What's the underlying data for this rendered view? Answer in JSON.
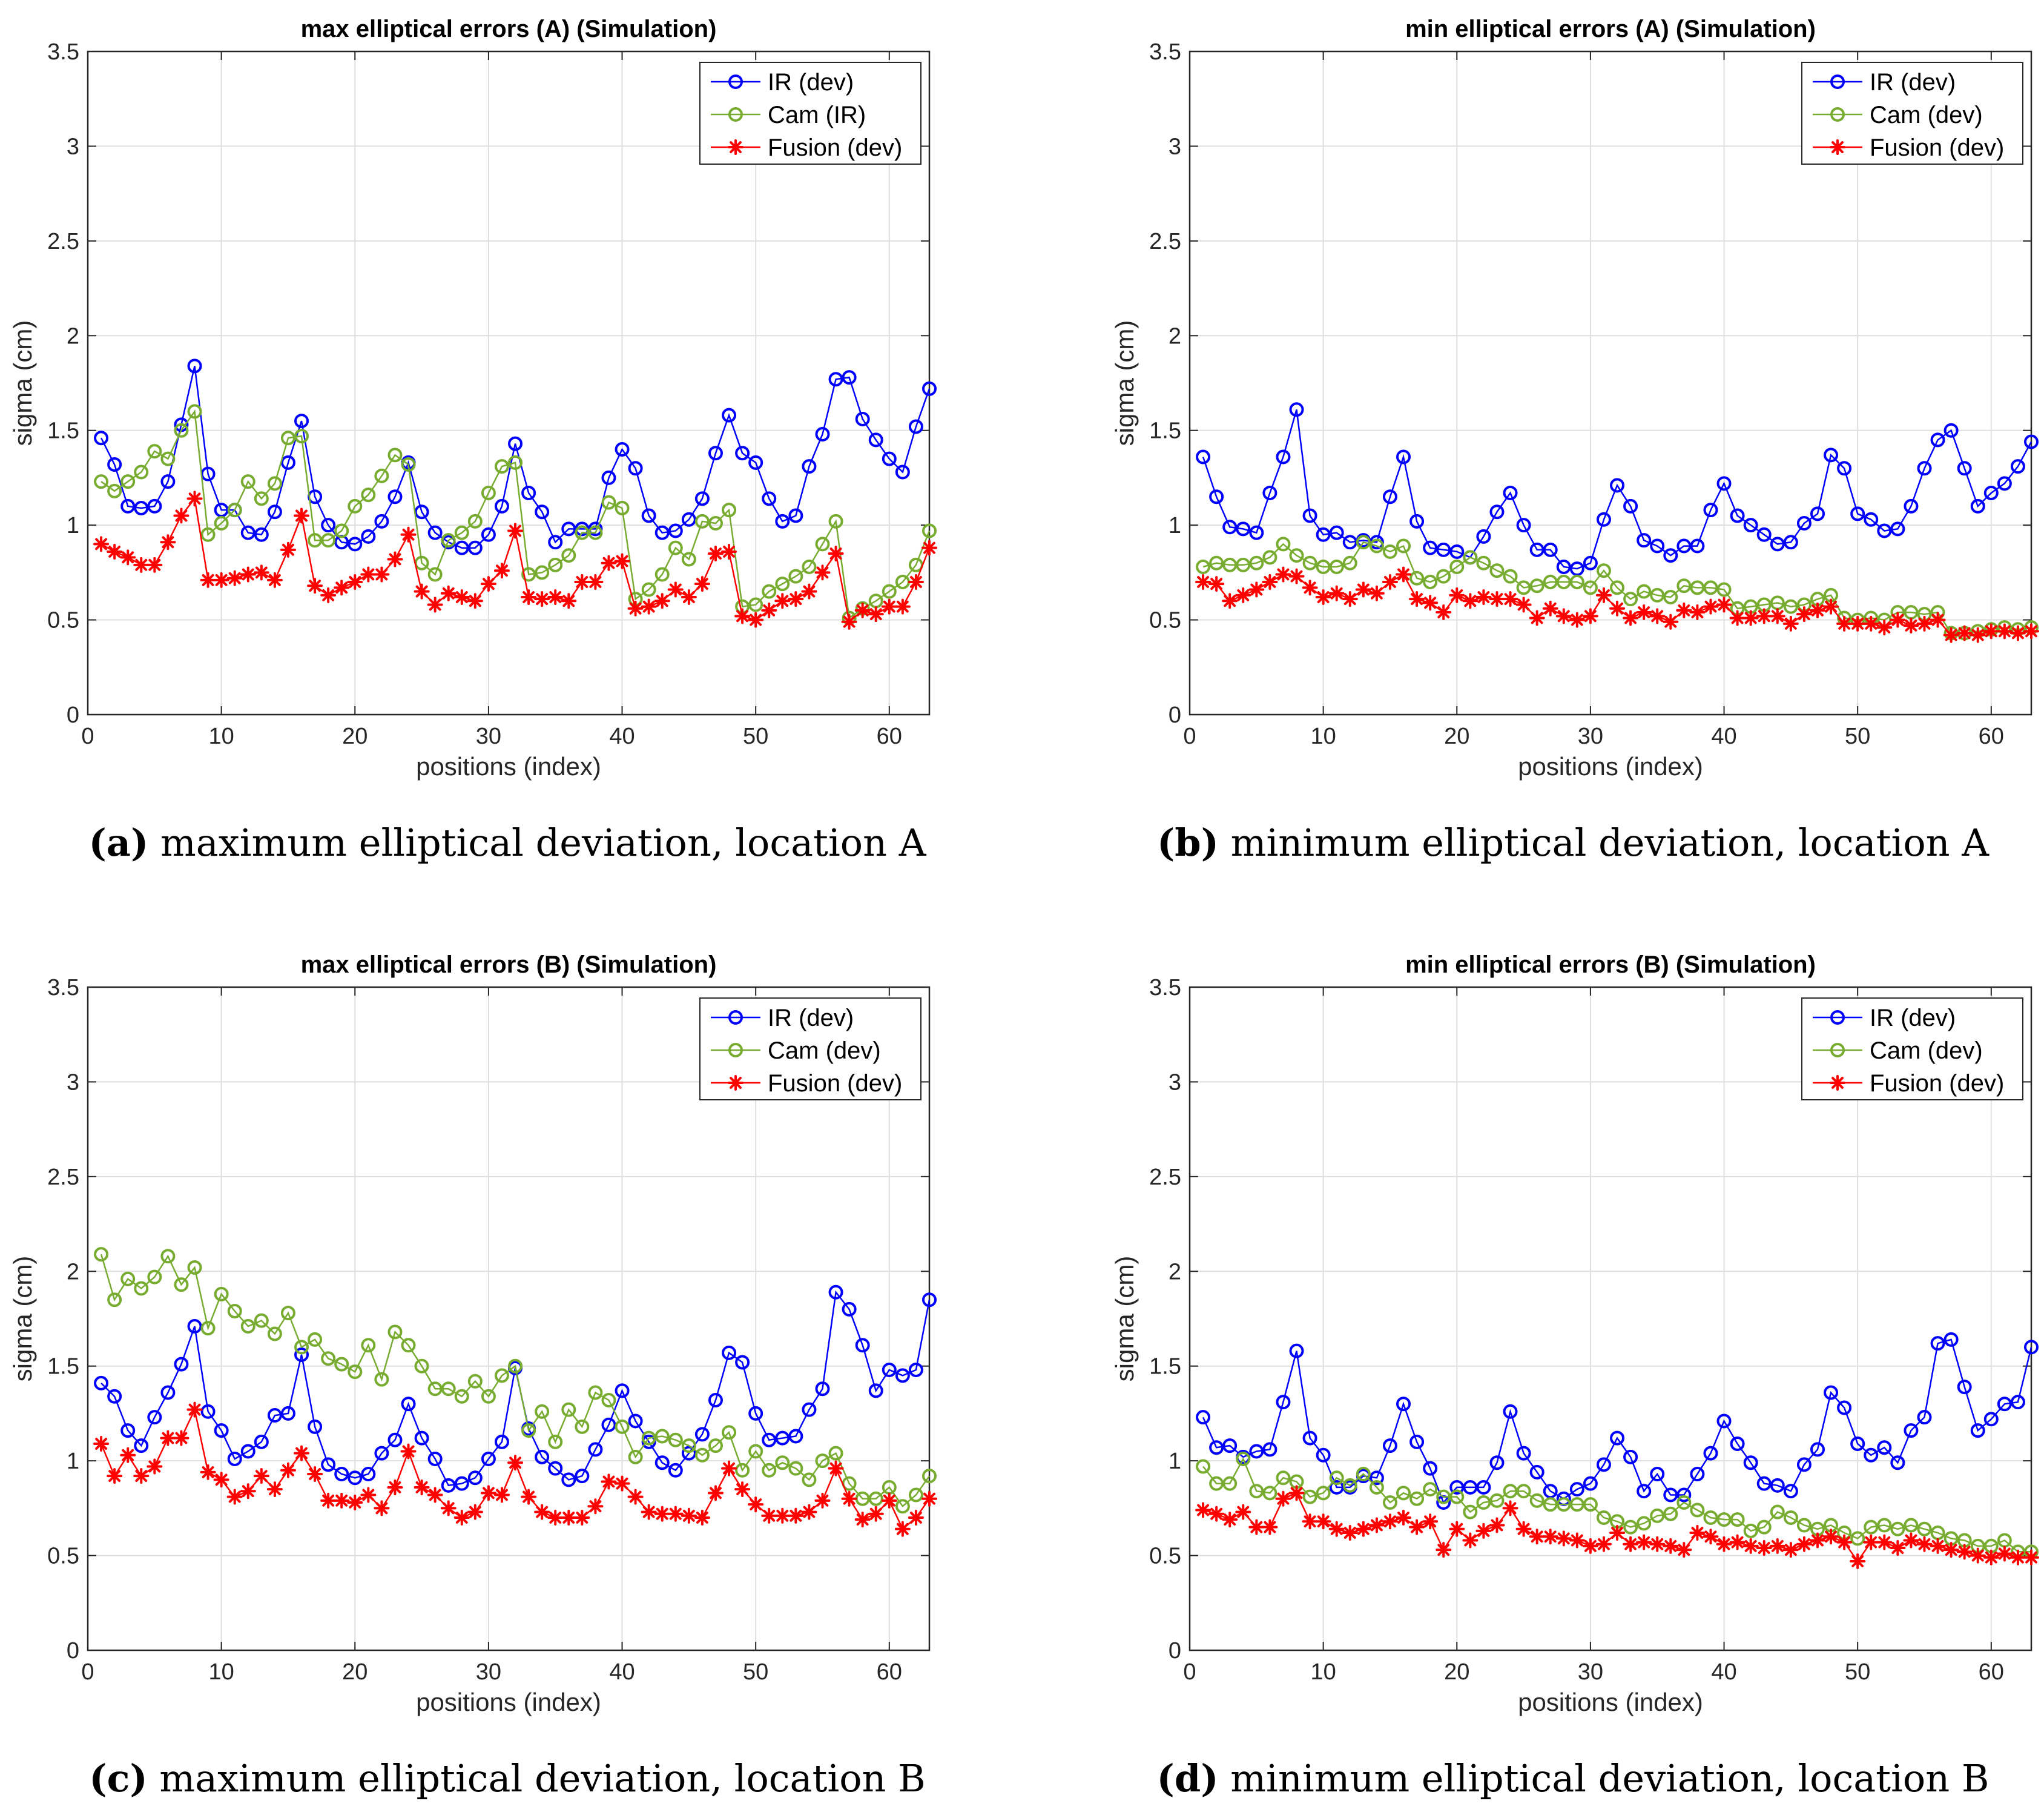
{
  "figure": {
    "colors": {
      "ir": "#0000ff",
      "cam": "#77ac30",
      "fusion": "#ff0000",
      "grid": "#dfdfdf",
      "axis": "#262626"
    }
  },
  "chart_data": [
    {
      "id": "a",
      "type": "line",
      "title": "max elliptical errors (A) (Simulation)",
      "xlabel": "positions (index)",
      "ylabel": "sigma (cm)",
      "xlim": [
        0,
        63
      ],
      "ylim": [
        0,
        3.5
      ],
      "xticks": [
        "0",
        "10",
        "20",
        "30",
        "40",
        "50",
        "60"
      ],
      "yticks": [
        "0",
        "0.5",
        "1",
        "1.5",
        "2",
        "2.5",
        "3",
        "3.5"
      ],
      "grid": true,
      "legend_position": "top-right",
      "caption_letter": "(a)",
      "caption_text": " maximum elliptical deviation, location A",
      "series": [
        {
          "name": "IR (dev)",
          "marker": "circle",
          "color": "#0000ff",
          "values": [
            1.46,
            1.32,
            1.1,
            1.09,
            1.1,
            1.23,
            1.53,
            1.84,
            1.27,
            1.08,
            1.08,
            0.96,
            0.95,
            1.07,
            1.33,
            1.55,
            1.15,
            1.0,
            0.91,
            0.9,
            0.94,
            1.02,
            1.15,
            1.33,
            1.07,
            0.96,
            0.91,
            0.88,
            0.88,
            0.95,
            1.1,
            1.43,
            1.17,
            1.07,
            0.91,
            0.98,
            0.98,
            0.98,
            1.25,
            1.4,
            1.3,
            1.05,
            0.96,
            0.97,
            1.03,
            1.14,
            1.38,
            1.58,
            1.38,
            1.33,
            1.14,
            1.02,
            1.05,
            1.31,
            1.48,
            1.77,
            1.78,
            1.56,
            1.45,
            1.35,
            1.28,
            1.52,
            1.72
          ]
        },
        {
          "name": "Cam (IR)",
          "marker": "circle",
          "color": "#77ac30",
          "values": [
            1.23,
            1.18,
            1.23,
            1.28,
            1.39,
            1.35,
            1.5,
            1.6,
            0.95,
            1.01,
            1.08,
            1.23,
            1.14,
            1.22,
            1.46,
            1.47,
            0.92,
            0.92,
            0.97,
            1.1,
            1.16,
            1.26,
            1.37,
            1.32,
            0.8,
            0.74,
            0.92,
            0.96,
            1.02,
            1.17,
            1.31,
            1.33,
            0.74,
            0.75,
            0.79,
            0.84,
            0.96,
            0.96,
            1.12,
            1.09,
            0.61,
            0.66,
            0.74,
            0.88,
            0.82,
            1.02,
            1.01,
            1.08,
            0.57,
            0.58,
            0.65,
            0.69,
            0.73,
            0.78,
            0.9,
            1.02,
            0.51,
            0.56,
            0.6,
            0.65,
            0.7,
            0.79,
            0.97
          ]
        },
        {
          "name": "Fusion (dev)",
          "marker": "star",
          "color": "#ff0000",
          "values": [
            0.9,
            0.86,
            0.83,
            0.79,
            0.79,
            0.91,
            1.05,
            1.14,
            0.71,
            0.71,
            0.72,
            0.74,
            0.75,
            0.71,
            0.87,
            1.05,
            0.68,
            0.63,
            0.67,
            0.7,
            0.74,
            0.74,
            0.82,
            0.95,
            0.65,
            0.58,
            0.64,
            0.62,
            0.6,
            0.69,
            0.76,
            0.97,
            0.62,
            0.61,
            0.62,
            0.6,
            0.7,
            0.7,
            0.8,
            0.81,
            0.56,
            0.57,
            0.6,
            0.66,
            0.62,
            0.69,
            0.85,
            0.86,
            0.52,
            0.5,
            0.55,
            0.6,
            0.61,
            0.65,
            0.75,
            0.85,
            0.49,
            0.55,
            0.53,
            0.57,
            0.57,
            0.7,
            0.88
          ]
        }
      ]
    },
    {
      "id": "b",
      "type": "line",
      "title": "min elliptical errors (A) (Simulation)",
      "xlabel": "positions (index)",
      "ylabel": "sigma (cm)",
      "xlim": [
        0,
        63
      ],
      "ylim": [
        0,
        3.5
      ],
      "xticks": [
        "0",
        "10",
        "20",
        "30",
        "40",
        "50",
        "60"
      ],
      "yticks": [
        "0",
        "0.5",
        "1",
        "1.5",
        "2",
        "2.5",
        "3",
        "3.5"
      ],
      "grid": true,
      "legend_position": "top-right",
      "caption_letter": "(b)",
      "caption_text": " minimum elliptical deviation, location A",
      "series": [
        {
          "name": "IR (dev)",
          "marker": "circle",
          "color": "#0000ff",
          "values": [
            1.36,
            1.15,
            0.99,
            0.98,
            0.96,
            1.17,
            1.36,
            1.61,
            1.05,
            0.95,
            0.96,
            0.91,
            0.92,
            0.91,
            1.15,
            1.36,
            1.02,
            0.88,
            0.87,
            0.86,
            0.83,
            0.94,
            1.07,
            1.17,
            1.0,
            0.87,
            0.87,
            0.78,
            0.77,
            0.8,
            1.03,
            1.21,
            1.1,
            0.92,
            0.89,
            0.84,
            0.89,
            0.89,
            1.08,
            1.22,
            1.05,
            1.0,
            0.95,
            0.9,
            0.91,
            1.01,
            1.06,
            1.37,
            1.3,
            1.06,
            1.03,
            0.97,
            0.98,
            1.1,
            1.3,
            1.45,
            1.5,
            1.3,
            1.1,
            1.17,
            1.22,
            1.31,
            1.44
          ]
        },
        {
          "name": "Cam (dev)",
          "marker": "circle",
          "color": "#77ac30",
          "values": [
            0.78,
            0.8,
            0.79,
            0.79,
            0.8,
            0.83,
            0.9,
            0.84,
            0.8,
            0.78,
            0.78,
            0.8,
            0.91,
            0.89,
            0.86,
            0.89,
            0.72,
            0.7,
            0.73,
            0.78,
            0.83,
            0.8,
            0.76,
            0.73,
            0.67,
            0.68,
            0.7,
            0.7,
            0.7,
            0.67,
            0.76,
            0.67,
            0.61,
            0.65,
            0.63,
            0.62,
            0.68,
            0.67,
            0.67,
            0.66,
            0.56,
            0.57,
            0.58,
            0.59,
            0.57,
            0.58,
            0.61,
            0.63,
            0.51,
            0.5,
            0.51,
            0.5,
            0.54,
            0.54,
            0.53,
            0.54,
            0.43,
            0.43,
            0.44,
            0.45,
            0.46,
            0.45,
            0.46
          ]
        },
        {
          "name": "Fusion (dev)",
          "marker": "star",
          "color": "#ff0000",
          "values": [
            0.7,
            0.69,
            0.6,
            0.63,
            0.66,
            0.7,
            0.74,
            0.73,
            0.67,
            0.62,
            0.64,
            0.61,
            0.66,
            0.64,
            0.7,
            0.74,
            0.61,
            0.59,
            0.54,
            0.63,
            0.6,
            0.62,
            0.61,
            0.61,
            0.58,
            0.51,
            0.56,
            0.52,
            0.5,
            0.52,
            0.63,
            0.56,
            0.51,
            0.54,
            0.52,
            0.49,
            0.55,
            0.54,
            0.57,
            0.58,
            0.51,
            0.51,
            0.52,
            0.52,
            0.48,
            0.53,
            0.55,
            0.57,
            0.48,
            0.48,
            0.48,
            0.46,
            0.5,
            0.47,
            0.48,
            0.5,
            0.42,
            0.43,
            0.42,
            0.44,
            0.44,
            0.43,
            0.44
          ]
        }
      ]
    },
    {
      "id": "c",
      "type": "line",
      "title": "max elliptical errors (B) (Simulation)",
      "xlabel": "positions (index)",
      "ylabel": "sigma (cm)",
      "xlim": [
        0,
        63
      ],
      "ylim": [
        0,
        3.5
      ],
      "xticks": [
        "0",
        "10",
        "20",
        "30",
        "40",
        "50",
        "60"
      ],
      "yticks": [
        "0",
        "0.5",
        "1",
        "1.5",
        "2",
        "2.5",
        "3",
        "3.5"
      ],
      "grid": true,
      "legend_position": "top-right",
      "caption_letter": "(c)",
      "caption_text": " maximum elliptical deviation, location B",
      "series": [
        {
          "name": "IR (dev)",
          "marker": "circle",
          "color": "#0000ff",
          "values": [
            1.41,
            1.34,
            1.16,
            1.08,
            1.23,
            1.36,
            1.51,
            1.71,
            1.26,
            1.16,
            1.01,
            1.05,
            1.1,
            1.24,
            1.25,
            1.56,
            1.18,
            0.98,
            0.93,
            0.91,
            0.93,
            1.04,
            1.11,
            1.3,
            1.12,
            1.01,
            0.87,
            0.88,
            0.91,
            1.01,
            1.1,
            1.49,
            1.17,
            1.02,
            0.96,
            0.9,
            0.92,
            1.06,
            1.19,
            1.37,
            1.21,
            1.1,
            0.99,
            0.95,
            1.04,
            1.14,
            1.32,
            1.57,
            1.52,
            1.25,
            1.11,
            1.12,
            1.13,
            1.27,
            1.38,
            1.89,
            1.8,
            1.61,
            1.37,
            1.48,
            1.45,
            1.48,
            1.85
          ]
        },
        {
          "name": "Cam (dev)",
          "marker": "circle",
          "color": "#77ac30",
          "values": [
            2.09,
            1.85,
            1.96,
            1.91,
            1.97,
            2.08,
            1.93,
            2.02,
            1.7,
            1.88,
            1.79,
            1.71,
            1.74,
            1.67,
            1.78,
            1.6,
            1.64,
            1.54,
            1.51,
            1.47,
            1.61,
            1.43,
            1.68,
            1.61,
            1.5,
            1.38,
            1.38,
            1.34,
            1.42,
            1.34,
            1.45,
            1.5,
            1.16,
            1.26,
            1.1,
            1.27,
            1.18,
            1.36,
            1.32,
            1.18,
            1.02,
            1.12,
            1.13,
            1.11,
            1.08,
            1.03,
            1.08,
            1.15,
            0.95,
            1.05,
            0.95,
            0.99,
            0.96,
            0.9,
            1.0,
            1.04,
            0.88,
            0.8,
            0.8,
            0.86,
            0.76,
            0.82,
            0.92
          ]
        },
        {
          "name": "Fusion (dev)",
          "marker": "star",
          "color": "#ff0000",
          "values": [
            1.09,
            0.92,
            1.03,
            0.92,
            0.97,
            1.12,
            1.12,
            1.27,
            0.94,
            0.9,
            0.81,
            0.84,
            0.92,
            0.85,
            0.95,
            1.04,
            0.93,
            0.79,
            0.79,
            0.78,
            0.82,
            0.75,
            0.86,
            1.05,
            0.86,
            0.82,
            0.75,
            0.7,
            0.73,
            0.83,
            0.82,
            0.99,
            0.81,
            0.73,
            0.7,
            0.7,
            0.7,
            0.76,
            0.89,
            0.88,
            0.81,
            0.73,
            0.72,
            0.72,
            0.71,
            0.7,
            0.83,
            0.96,
            0.85,
            0.77,
            0.71,
            0.71,
            0.71,
            0.73,
            0.79,
            0.96,
            0.8,
            0.69,
            0.72,
            0.79,
            0.64,
            0.7,
            0.8
          ]
        }
      ]
    },
    {
      "id": "d",
      "type": "line",
      "title": "min elliptical errors (B) (Simulation)",
      "xlabel": "positions (index)",
      "ylabel": "sigma (cm)",
      "xlim": [
        0,
        63
      ],
      "ylim": [
        0,
        3.5
      ],
      "xticks": [
        "0",
        "10",
        "20",
        "30",
        "40",
        "50",
        "60"
      ],
      "yticks": [
        "0",
        "0.5",
        "1",
        "1.5",
        "2",
        "2.5",
        "3",
        "3.5"
      ],
      "grid": true,
      "legend_position": "top-right",
      "caption_letter": "(d)",
      "caption_text": " minimum elliptical deviation, location B",
      "series": [
        {
          "name": "IR (dev)",
          "marker": "circle",
          "color": "#0000ff",
          "values": [
            1.23,
            1.07,
            1.08,
            1.02,
            1.05,
            1.06,
            1.31,
            1.58,
            1.12,
            1.03,
            0.86,
            0.86,
            0.92,
            0.91,
            1.08,
            1.3,
            1.1,
            0.96,
            0.78,
            0.86,
            0.86,
            0.86,
            0.99,
            1.26,
            1.04,
            0.94,
            0.84,
            0.8,
            0.85,
            0.88,
            0.98,
            1.12,
            1.02,
            0.84,
            0.93,
            0.82,
            0.82,
            0.93,
            1.04,
            1.21,
            1.09,
            0.99,
            0.88,
            0.87,
            0.84,
            0.98,
            1.06,
            1.36,
            1.28,
            1.09,
            1.03,
            1.07,
            0.99,
            1.16,
            1.23,
            1.62,
            1.64,
            1.39,
            1.16,
            1.22,
            1.3,
            1.31,
            1.6
          ]
        },
        {
          "name": "Cam (dev)",
          "marker": "circle",
          "color": "#77ac30",
          "values": [
            0.97,
            0.88,
            0.88,
            1.01,
            0.84,
            0.83,
            0.91,
            0.89,
            0.81,
            0.83,
            0.91,
            0.87,
            0.93,
            0.86,
            0.78,
            0.83,
            0.8,
            0.85,
            0.81,
            0.81,
            0.73,
            0.78,
            0.79,
            0.84,
            0.84,
            0.79,
            0.77,
            0.77,
            0.77,
            0.77,
            0.7,
            0.68,
            0.65,
            0.67,
            0.71,
            0.72,
            0.78,
            0.74,
            0.7,
            0.69,
            0.69,
            0.63,
            0.65,
            0.73,
            0.7,
            0.66,
            0.64,
            0.66,
            0.62,
            0.59,
            0.65,
            0.66,
            0.64,
            0.66,
            0.64,
            0.62,
            0.59,
            0.58,
            0.55,
            0.55,
            0.58,
            0.52,
            0.52
          ]
        },
        {
          "name": "Fusion (dev)",
          "marker": "star",
          "color": "#ff0000",
          "values": [
            0.74,
            0.72,
            0.69,
            0.73,
            0.65,
            0.65,
            0.8,
            0.83,
            0.68,
            0.68,
            0.64,
            0.62,
            0.64,
            0.66,
            0.68,
            0.7,
            0.65,
            0.68,
            0.53,
            0.64,
            0.58,
            0.63,
            0.66,
            0.75,
            0.64,
            0.6,
            0.6,
            0.59,
            0.58,
            0.55,
            0.56,
            0.62,
            0.56,
            0.57,
            0.56,
            0.55,
            0.53,
            0.62,
            0.6,
            0.56,
            0.57,
            0.55,
            0.54,
            0.55,
            0.53,
            0.56,
            0.58,
            0.6,
            0.57,
            0.47,
            0.57,
            0.57,
            0.54,
            0.58,
            0.56,
            0.55,
            0.53,
            0.52,
            0.5,
            0.49,
            0.51,
            0.49,
            0.49
          ]
        }
      ]
    }
  ]
}
